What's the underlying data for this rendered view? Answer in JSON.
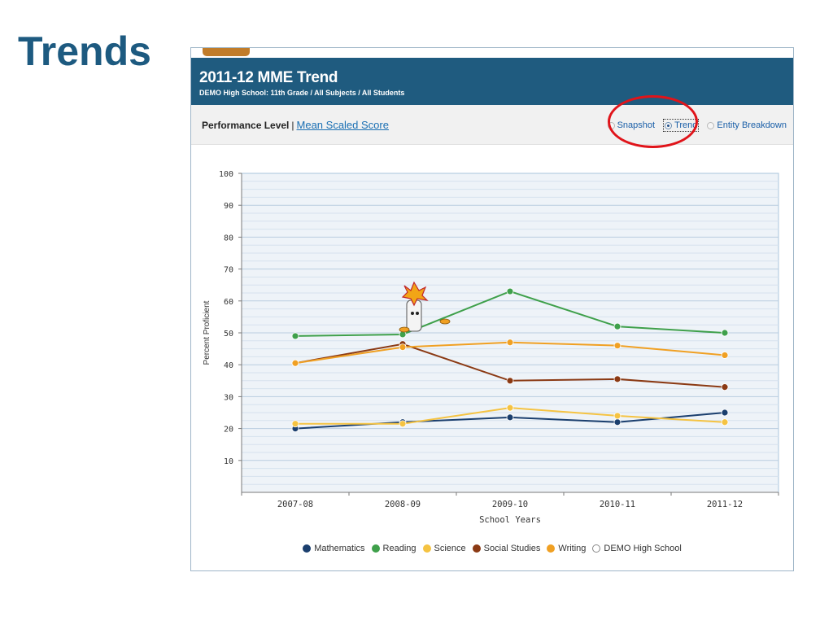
{
  "slide": {
    "title": "Trends"
  },
  "panel": {
    "title": "2011-12 MME Trend",
    "subtitle": "DEMO High School: 11th Grade / All Subjects / All Students",
    "perf_label": "Performance Level",
    "separator": "|",
    "mean_link": "Mean Scaled Score",
    "views": [
      {
        "label": "Snapshot",
        "selected": false
      },
      {
        "label": "Trend",
        "selected": true
      },
      {
        "label": "Entity Breakdown",
        "selected": false
      }
    ]
  },
  "chart_data": {
    "type": "line",
    "categories": [
      "2007-08",
      "2008-09",
      "2009-10",
      "2010-11",
      "2011-12"
    ],
    "xlabel": "School Years",
    "ylabel": "Percent Proficient",
    "ylim": [
      0,
      100
    ],
    "yticks": [
      10,
      20,
      30,
      40,
      50,
      60,
      70,
      80,
      90,
      100
    ],
    "grid": true,
    "legend_position": "bottom",
    "series": [
      {
        "name": "Mathematics",
        "color": "#1b3f6e",
        "values": [
          20,
          22,
          23.5,
          22,
          25
        ]
      },
      {
        "name": "Reading",
        "color": "#3fa04b",
        "values": [
          49,
          49.5,
          63,
          52,
          50
        ]
      },
      {
        "name": "Science",
        "color": "#f5c342",
        "values": [
          21.5,
          21.5,
          26.5,
          24,
          22
        ]
      },
      {
        "name": "Social Studies",
        "color": "#8b3a14",
        "values": [
          40.5,
          46.5,
          35,
          35.5,
          33
        ]
      },
      {
        "name": "Writing",
        "color": "#f0a023",
        "values": [
          40.5,
          45.5,
          47,
          46,
          43
        ]
      }
    ],
    "extra_legend": {
      "name": "DEMO High School",
      "color": "#ffffff"
    }
  }
}
